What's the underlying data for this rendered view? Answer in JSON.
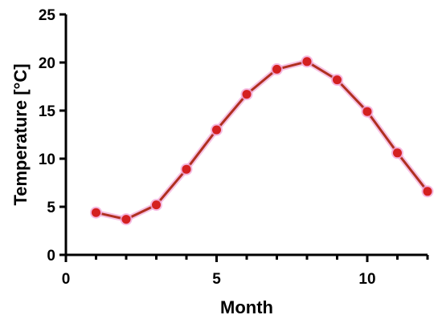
{
  "chart_data": {
    "type": "line",
    "title": "",
    "xlabel": "Month",
    "ylabel": "Temperature [°C]",
    "xlim": [
      0,
      12
    ],
    "ylim": [
      0,
      25
    ],
    "xticks": [
      0,
      5,
      10
    ],
    "yticks": [
      0,
      5,
      10,
      15,
      20,
      25
    ],
    "grid": false,
    "legend": "none",
    "colors": {
      "line": "#b03020",
      "marker": "#d42020",
      "marker_halo": "#f2a8d8",
      "axis": "#000000"
    },
    "series": [
      {
        "x": [
          1,
          2,
          3,
          4,
          5,
          6,
          7,
          8,
          9,
          10,
          11,
          12
        ],
        "y": [
          4.4,
          3.7,
          5.2,
          8.9,
          13.0,
          16.7,
          19.3,
          20.1,
          18.2,
          14.9,
          10.6,
          6.6
        ]
      }
    ]
  }
}
